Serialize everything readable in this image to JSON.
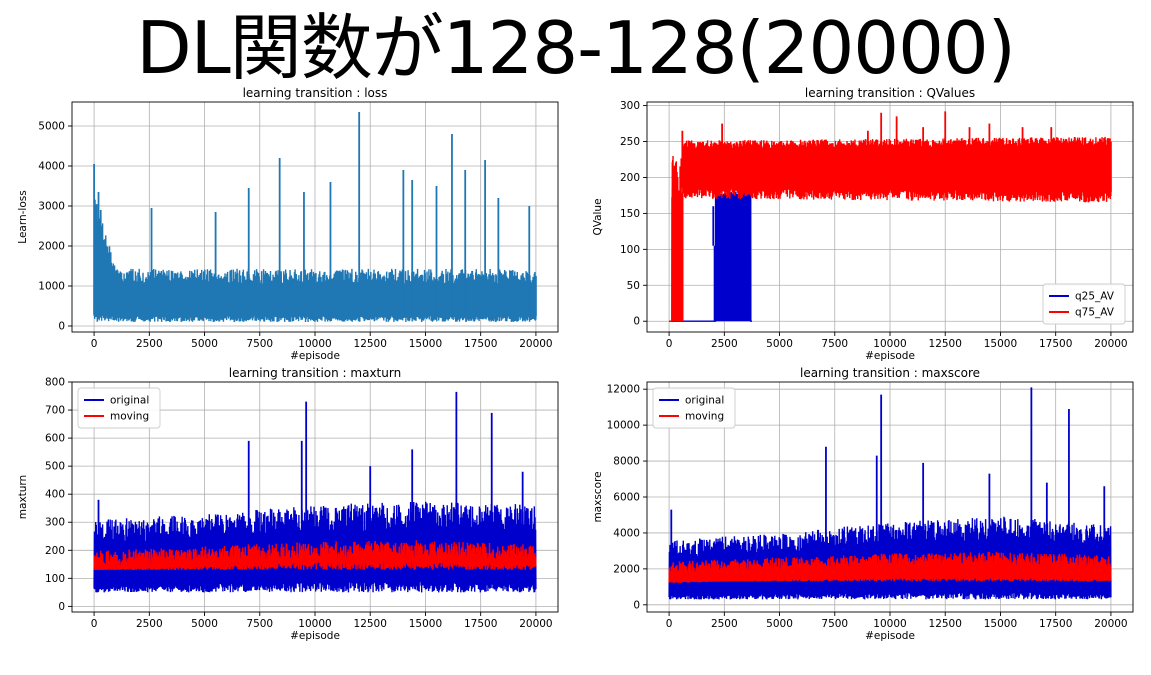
{
  "slide": {
    "title": "DL関数が128-128(20000)"
  },
  "chart_data": [
    {
      "type": "line",
      "title": "learning transition : loss",
      "xlabel": "#episode",
      "ylabel": "Learn-loss",
      "xlim": [
        -1000,
        21000
      ],
      "ylim": [
        -150,
        5600
      ],
      "xticks": [
        0,
        2500,
        5000,
        7500,
        10000,
        12500,
        15000,
        17500,
        20000
      ],
      "yticks": [
        0,
        1000,
        2000,
        3000,
        4000,
        5000
      ],
      "grid": true,
      "legend": null,
      "series": [
        {
          "name": "",
          "color": "#1f77b4",
          "style": "noisy",
          "base_lo": 100,
          "band": [
            [
              0,
              300,
              3000
            ],
            [
              1000,
              250,
              1300
            ],
            [
              20000,
              250,
              1300
            ]
          ],
          "spikes": [
            [
              0,
              4050
            ],
            [
              200,
              3350
            ],
            [
              300,
              2900
            ],
            [
              2600,
              2950
            ],
            [
              5500,
              2850
            ],
            [
              7000,
              3450
            ],
            [
              8400,
              4200
            ],
            [
              9500,
              3350
            ],
            [
              10700,
              3600
            ],
            [
              12000,
              5350
            ],
            [
              14000,
              3900
            ],
            [
              14400,
              3650
            ],
            [
              15500,
              3500
            ],
            [
              16200,
              4800
            ],
            [
              16800,
              3900
            ],
            [
              17700,
              4150
            ],
            [
              18300,
              3200
            ],
            [
              19700,
              3000
            ],
            [
              20000,
              1250
            ]
          ]
        }
      ]
    },
    {
      "type": "line",
      "title": "learning transition : QValues",
      "xlabel": "#episode",
      "ylabel": "QValue",
      "xlim": [
        -1000,
        21000
      ],
      "ylim": [
        -15,
        305
      ],
      "xticks": [
        0,
        2500,
        5000,
        7500,
        10000,
        12500,
        15000,
        17500,
        20000
      ],
      "yticks": [
        0,
        50,
        100,
        150,
        200,
        250,
        300
      ],
      "grid": true,
      "legend": "lower-right",
      "series": [
        {
          "name": "q25_AV",
          "color": "#0000cc",
          "style": "qblue",
          "base_lo": 0,
          "band": [
            [
              2100,
              160,
              180
            ],
            [
              3600,
              160,
              180
            ]
          ],
          "spikes": [
            [
              2000,
              105
            ]
          ]
        },
        {
          "name": "q75_AV",
          "color": "#ff0000",
          "style": "qred",
          "base_lo": 0,
          "band": [
            [
              500,
              185,
              240
            ],
            [
              3600,
              185,
              240
            ],
            [
              20000,
              180,
              245
            ]
          ],
          "spikes": [
            [
              150,
              160
            ],
            [
              600,
              265
            ],
            [
              2400,
              275
            ],
            [
              9000,
              265
            ],
            [
              9600,
              290
            ],
            [
              10300,
              285
            ],
            [
              11500,
              270
            ],
            [
              12500,
              292
            ],
            [
              13600,
              270
            ],
            [
              14500,
              275
            ],
            [
              16000,
              270
            ],
            [
              17300,
              270
            ],
            [
              20000,
              250
            ]
          ]
        }
      ]
    },
    {
      "type": "line",
      "title": "learning transition : maxturn",
      "xlabel": "#episode",
      "ylabel": "maxturn",
      "xlim": [
        -1000,
        21000
      ],
      "ylim": [
        -20,
        800
      ],
      "xticks": [
        0,
        2500,
        5000,
        7500,
        10000,
        12500,
        15000,
        17500,
        20000
      ],
      "yticks": [
        0,
        100,
        200,
        300,
        400,
        500,
        600,
        700,
        800
      ],
      "grid": true,
      "legend": "upper-left",
      "series": [
        {
          "name": "original",
          "color": "#0000cc",
          "style": "noisy",
          "base_lo": 50,
          "band": [
            [
              0,
              70,
              280
            ],
            [
              5000,
              80,
              300
            ],
            [
              10000,
              90,
              330
            ],
            [
              15000,
              90,
              340
            ],
            [
              20000,
              80,
              330
            ]
          ],
          "spikes": [
            [
              200,
              380
            ],
            [
              7000,
              590
            ],
            [
              9400,
              590
            ],
            [
              9600,
              730
            ],
            [
              12500,
              500
            ],
            [
              14400,
              560
            ],
            [
              16400,
              765
            ],
            [
              18000,
              690
            ],
            [
              19400,
              480
            ]
          ]
        },
        {
          "name": "moving",
          "color": "#ff0000",
          "style": "noisy",
          "base_lo": 130,
          "band": [
            [
              0,
              130,
              180
            ],
            [
              5000,
              145,
              195
            ],
            [
              10000,
              160,
              210
            ],
            [
              15000,
              160,
              215
            ],
            [
              20000,
              150,
              200
            ]
          ],
          "spikes": []
        }
      ]
    },
    {
      "type": "line",
      "title": "learning transition : maxscore",
      "xlabel": "#episode",
      "ylabel": "maxscore",
      "xlim": [
        -1000,
        21000
      ],
      "ylim": [
        -400,
        12400
      ],
      "xticks": [
        0,
        2500,
        5000,
        7500,
        10000,
        12500,
        15000,
        17500,
        20000
      ],
      "yticks": [
        0,
        2000,
        4000,
        6000,
        8000,
        10000,
        12000
      ],
      "grid": true,
      "legend": "upper-left",
      "series": [
        {
          "name": "original",
          "color": "#0000cc",
          "style": "noisy",
          "base_lo": 300,
          "band": [
            [
              0,
              500,
              3300
            ],
            [
              5000,
              600,
              3600
            ],
            [
              10000,
              700,
              4200
            ],
            [
              15000,
              700,
              4500
            ],
            [
              20000,
              600,
              4000
            ]
          ],
          "spikes": [
            [
              100,
              5300
            ],
            [
              7100,
              8800
            ],
            [
              9400,
              8300
            ],
            [
              9600,
              11700
            ],
            [
              11500,
              7900
            ],
            [
              14500,
              7300
            ],
            [
              16400,
              12100
            ],
            [
              17100,
              6800
            ],
            [
              18100,
              10900
            ],
            [
              19700,
              6600
            ]
          ]
        },
        {
          "name": "moving",
          "color": "#ff0000",
          "style": "noisy",
          "base_lo": 1300,
          "band": [
            [
              0,
              1200,
              2200
            ],
            [
              5000,
              1400,
              2400
            ],
            [
              10000,
              1500,
              2600
            ],
            [
              15000,
              1500,
              2700
            ],
            [
              20000,
              1400,
              2500
            ]
          ],
          "spikes": []
        }
      ]
    }
  ]
}
